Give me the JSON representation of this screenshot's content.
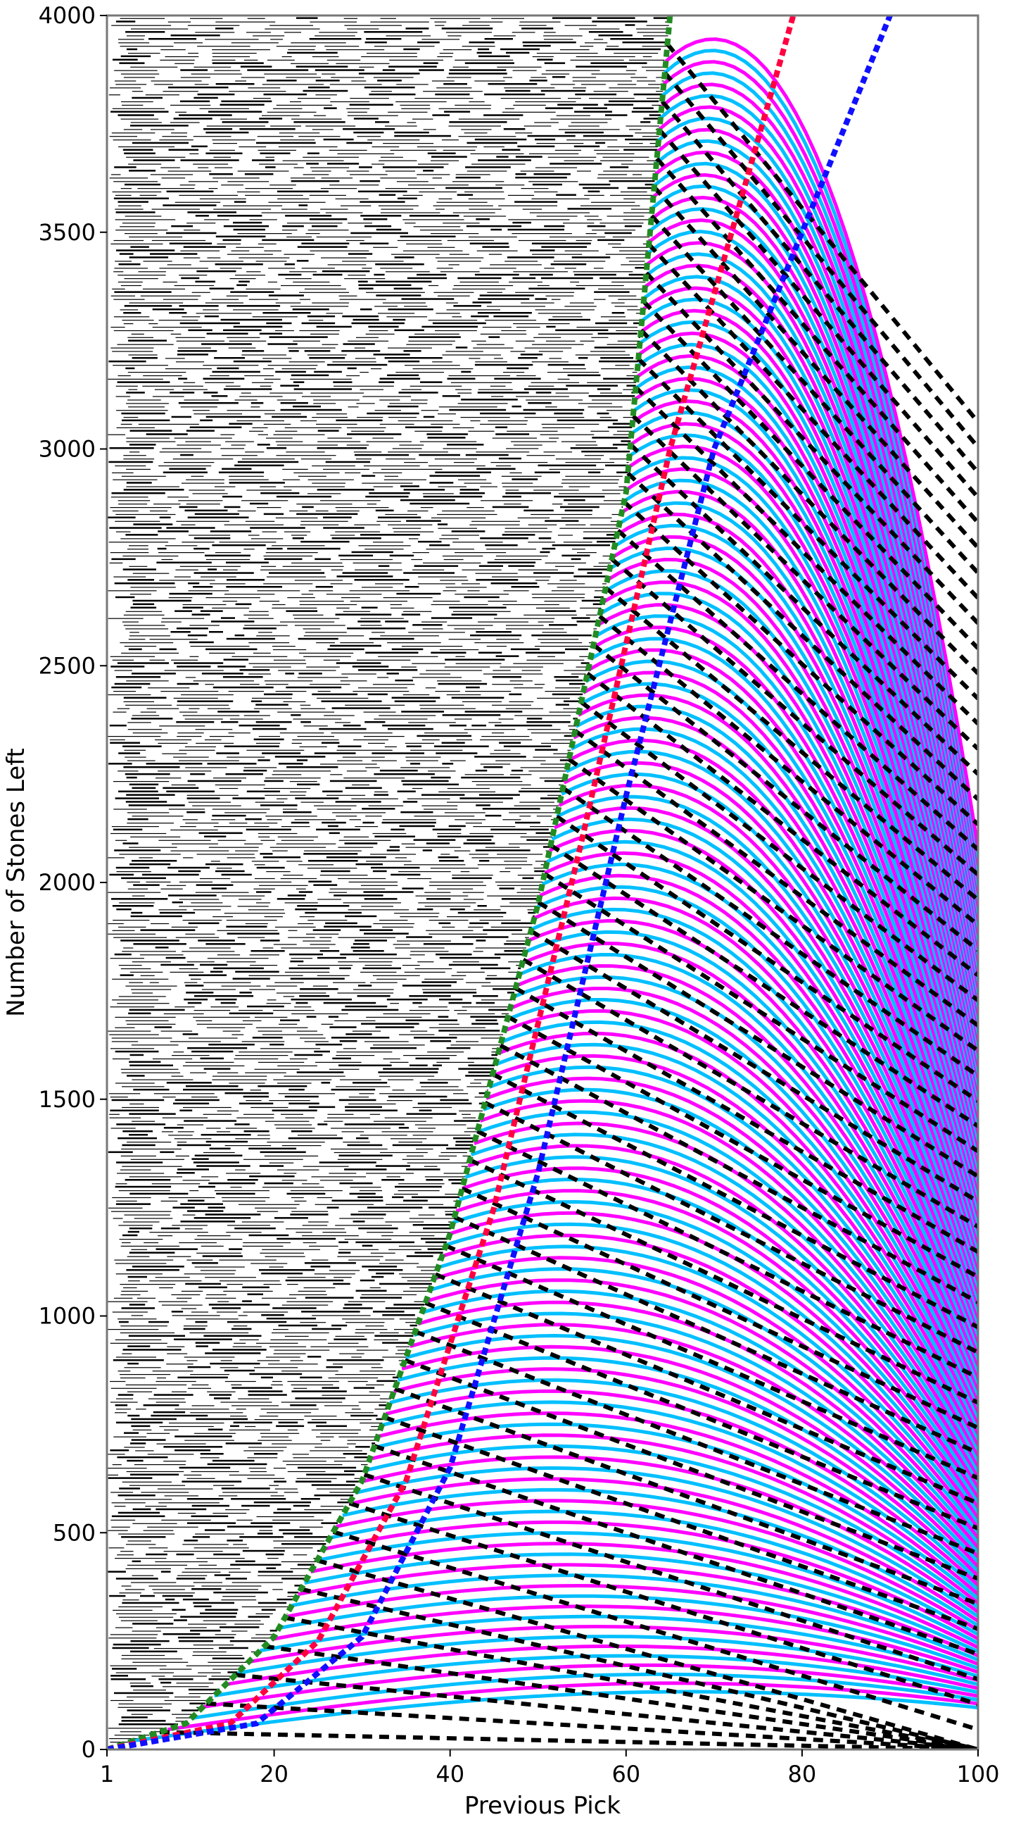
{
  "chart_data": {
    "type": "scatter",
    "title": "",
    "xlabel": "Previous Pick",
    "ylabel": "Number of Stones Left",
    "xlim": [
      1,
      100
    ],
    "ylim": [
      0,
      4000
    ],
    "x_ticks": [
      1,
      20,
      40,
      60,
      80,
      100
    ],
    "y_ticks": [
      0,
      500,
      1000,
      1500,
      2000,
      2500,
      3000,
      3500,
      4000
    ],
    "grid": false,
    "legend": "none",
    "background_pattern": {
      "description_color": "#000000",
      "rows_step": 8
    },
    "curves": [
      {
        "color": "#00bfff",
        "role": "family-a"
      },
      {
        "color": "#ff00ff",
        "role": "family-b"
      }
    ],
    "boundary_lines": [
      {
        "color": "#228b22",
        "points": [
          [
            1,
            0
          ],
          [
            10,
            60
          ],
          [
            20,
            260
          ],
          [
            30,
            620
          ],
          [
            40,
            1190
          ],
          [
            50,
            1950
          ],
          [
            60,
            2900
          ],
          [
            65,
            4000
          ]
        ]
      },
      {
        "color": "#ff0040",
        "points": [
          [
            1,
            0
          ],
          [
            15,
            60
          ],
          [
            25,
            250
          ],
          [
            35,
            620
          ],
          [
            45,
            1250
          ],
          [
            55,
            2100
          ],
          [
            65,
            3000
          ],
          [
            79,
            4000
          ]
        ]
      },
      {
        "color": "#1010ff",
        "points": [
          [
            1,
            0
          ],
          [
            18,
            60
          ],
          [
            30,
            260
          ],
          [
            40,
            650
          ],
          [
            50,
            1330
          ],
          [
            60,
            2200
          ],
          [
            70,
            3000
          ],
          [
            90,
            4000
          ]
        ]
      }
    ]
  }
}
